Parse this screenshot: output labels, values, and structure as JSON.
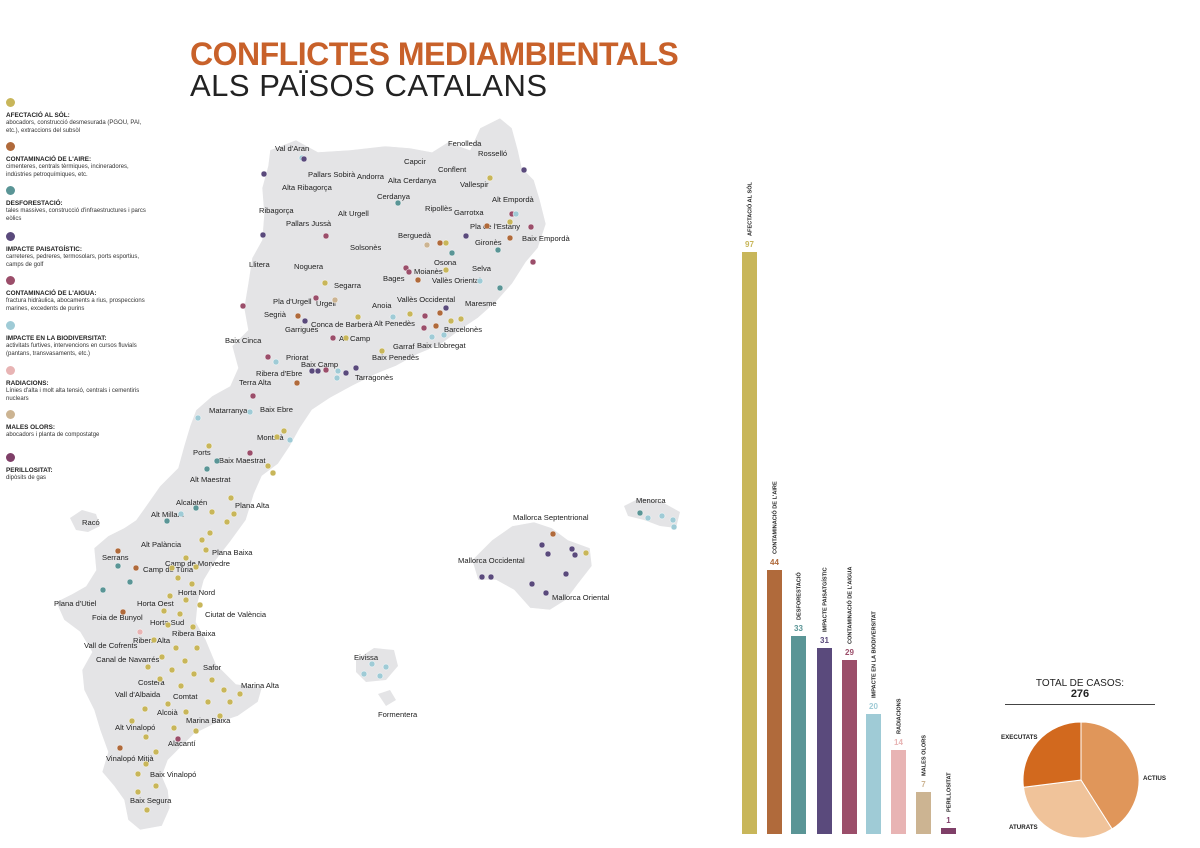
{
  "title": {
    "line1": "CONFLICTES MEDIAMBIENTALS",
    "line2": "ALS PAÏSOS CATALANS"
  },
  "colors": {
    "title_accent": "#c8612a",
    "land": "#e4e4e6",
    "sol": "#c8b65a",
    "aire": "#b06a3b",
    "desforestacio": "#5a9596",
    "paisatge": "#5a4a7c",
    "aigua": "#9b4e6a",
    "biodiversitat": "#9fcbd6",
    "radiacions": "#e8b4b4",
    "olors": "#ccb492",
    "perillositat": "#7f3f68",
    "pie_executats": "#d2691e",
    "pie_actius": "#e0965a",
    "pie_aturats": "#f0c39a"
  },
  "legend": [
    {
      "key": "sol",
      "title": "AFECTACIÓ AL SÒL:",
      "desc": "abocadors, construcció desmesurada (PGOU, PAI, etc.), extraccions del subsòl"
    },
    {
      "key": "aire",
      "title": "CONTAMINACIÓ DE L'AIRE:",
      "desc": "cimenteres, centrals tèrmiques, incineradores, indústries petroquímiques, etc."
    },
    {
      "key": "desforestacio",
      "title": "DESFORESTACIÓ:",
      "desc": "tales massives, construcció d'infraestructures i parcs eòlics"
    },
    {
      "key": "paisatge",
      "title": "IMPACTE PAISATGÍSTIC:",
      "desc": "carreteres, pedreres, termosolars, ports esportius, camps de golf"
    },
    {
      "key": "aigua",
      "title": "CONTAMINACIÓ DE L'AIGUA:",
      "desc": "fractura hidràulica, abocaments a rius, prospeccions marines, excedents de purins"
    },
    {
      "key": "biodiversitat",
      "title": "IMPACTE EN LA BIODIVERSITAT:",
      "desc": "activitats furtives, intervencions en cursos fluvials (pantans, transvasaments, etc.)"
    },
    {
      "key": "radiacions",
      "title": "RADIACIONS:",
      "desc": "Línies d'alta i molt alta tensió, centrals i cementiris nuclears"
    },
    {
      "key": "olors",
      "title": "MALES OLORS:",
      "desc": "abocadors i planta de compostatge"
    },
    {
      "key": "perillositat",
      "title": "PERILLOSITAT:",
      "desc": "dipòsits de gas"
    }
  ],
  "map": {
    "regions": [
      "Val d'Aran",
      "Pallars Sobirà",
      "Alta Ribagorça",
      "Andorra",
      "Alta Cerdanya",
      "Capcir",
      "Conflent",
      "Fenolleda",
      "Rosselló",
      "Vallespir",
      "Alt Empordà",
      "Cerdanya",
      "Ripollès",
      "Garrotxa",
      "Pla de l'Estany",
      "Gironès",
      "Baix Empordà",
      "Ribagorça",
      "Pallars Jussà",
      "Alt Urgell",
      "Berguedà",
      "Solsonès",
      "Osona",
      "Selva",
      "Llitera",
      "Noguera",
      "Segarra",
      "Bages",
      "Moianès",
      "Vallès Oriental",
      "Maresme",
      "Pla d'Urgell",
      "Segrià",
      "Urgell",
      "Anoia",
      "Vallès Occidental",
      "Garrigues",
      "Conca de Barberà",
      "Alt Penedès",
      "Barcelonès",
      "Baix Cinca",
      "Alt Camp",
      "Garraf",
      "Baix Llobregat",
      "Priorat",
      "Baix Penedès",
      "Ribera d'Ebre",
      "Baix Camp",
      "Tarragonès",
      "Terra Alta",
      "Matarranya",
      "Baix Ebre",
      "Montsià",
      "Ports",
      "Baix Maestrat",
      "Alt Maestrat",
      "Alcalatén",
      "Plana Alta",
      "Alt Millars",
      "Racó",
      "Alt Palància",
      "Plana Baixa",
      "Serrans",
      "Camp de Morvedre",
      "Camp de Túria",
      "Horta Nord",
      "Plana d'Utiel",
      "Horta Oest",
      "Foia de Bunyol",
      "Horta Sud",
      "Ciutat de València",
      "Ribera Baixa",
      "Ribera Alta",
      "Vall de Cofrents",
      "Canal de Navarrés",
      "Safor",
      "Costera",
      "Vall d'Albaida",
      "Comtat",
      "Marina Alta",
      "Alcoià",
      "Marina Baixa",
      "Alt Vinalopó",
      "Alacantí",
      "Vinalopó Mitjà",
      "Baix Vinalopó",
      "Baix Segura",
      "Menorca",
      "Mallorca Septentrional",
      "Mallorca Occidental",
      "Mallorca Oriental",
      "Eivissa",
      "Formentera"
    ]
  },
  "chart_data": [
    {
      "type": "bar",
      "title": "",
      "categories": [
        "AFECTACIÓ AL SÒL",
        "CONTAMINACIÓ DE L'AIRE",
        "DESFORESTACIÓ",
        "IMPACTE PAISATGÍSTIC",
        "CONTAMINACIÓ DE L'AIGUA",
        "IMPACTE EN LA BIODIVERSITAT",
        "RADIACIONS",
        "MALES OLORS",
        "PERILLOSITAT"
      ],
      "values": [
        97,
        44,
        33,
        31,
        29,
        20,
        14,
        7,
        1
      ],
      "colors": [
        "#c8b65a",
        "#b06a3b",
        "#5a9596",
        "#5a4a7c",
        "#9b4e6a",
        "#9fcbd6",
        "#e8b4b4",
        "#ccb492",
        "#7f3f68"
      ],
      "ylim": [
        0,
        97
      ],
      "grid": false
    },
    {
      "type": "pie",
      "title": "TOTAL DE CASOS:",
      "total": "276",
      "categories": [
        "ACTIUS",
        "ATURATS",
        "EXECUTATS"
      ],
      "values": [
        41,
        32,
        27
      ]
    }
  ]
}
